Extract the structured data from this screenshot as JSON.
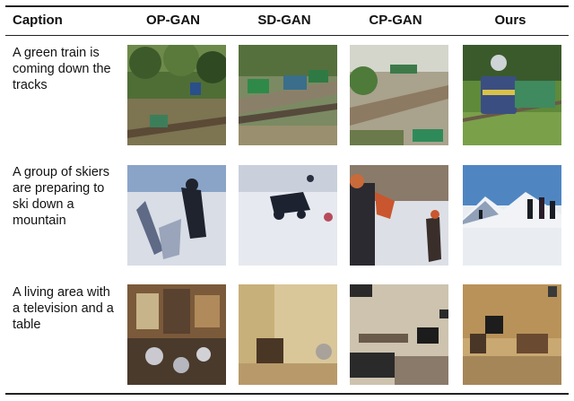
{
  "headers": {
    "caption": "Caption",
    "col1": "OP-GAN",
    "col2": "SD-GAN",
    "col3": "CP-GAN",
    "col4": "Ours"
  },
  "rows": [
    {
      "caption": "A green train is coming down the tracks",
      "thumb_icons": [
        "train-thumbnail"
      ]
    },
    {
      "caption": "A group of skiers are preparing to ski down a mountain",
      "thumb_icons": [
        "skiers-thumbnail"
      ]
    },
    {
      "caption": "A living area with a television and a table",
      "thumb_icons": [
        "living-room-thumbnail"
      ]
    }
  ]
}
